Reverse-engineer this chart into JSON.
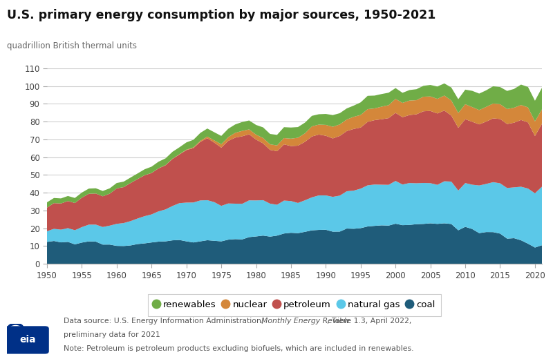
{
  "title": "U.S. primary energy consumption by major sources, 1950-2021",
  "ylabel": "quadrillion British thermal units",
  "ylim": [
    0,
    110
  ],
  "yticks": [
    0,
    10,
    20,
    30,
    40,
    50,
    60,
    70,
    80,
    90,
    100,
    110
  ],
  "years": [
    1950,
    1951,
    1952,
    1953,
    1954,
    1955,
    1956,
    1957,
    1958,
    1959,
    1960,
    1961,
    1962,
    1963,
    1964,
    1965,
    1966,
    1967,
    1968,
    1969,
    1970,
    1971,
    1972,
    1973,
    1974,
    1975,
    1976,
    1977,
    1978,
    1979,
    1980,
    1981,
    1982,
    1983,
    1984,
    1985,
    1986,
    1987,
    1988,
    1989,
    1990,
    1991,
    1992,
    1993,
    1994,
    1995,
    1996,
    1997,
    1998,
    1999,
    2000,
    2001,
    2002,
    2003,
    2004,
    2005,
    2006,
    2007,
    2008,
    2009,
    2010,
    2011,
    2012,
    2013,
    2014,
    2015,
    2016,
    2017,
    2018,
    2019,
    2020,
    2021
  ],
  "coal": [
    12.35,
    12.87,
    12.08,
    12.36,
    10.97,
    11.97,
    12.64,
    12.52,
    10.83,
    10.85,
    10.11,
    10.02,
    10.38,
    11.14,
    11.52,
    12.04,
    12.5,
    12.65,
    13.23,
    13.44,
    12.66,
    12.04,
    12.66,
    13.3,
    12.97,
    12.66,
    13.61,
    13.92,
    13.76,
    15.04,
    15.42,
    15.91,
    15.32,
    15.89,
    17.07,
    17.48,
    17.26,
    18.01,
    18.85,
    19.09,
    19.17,
    18.1,
    18.14,
    19.85,
    19.71,
    20.09,
    21.03,
    21.37,
    21.66,
    21.52,
    22.58,
    21.76,
    21.9,
    22.32,
    22.46,
    22.8,
    22.48,
    22.81,
    22.42,
    18.89,
    20.82,
    19.58,
    17.29,
    17.89,
    17.86,
    17.02,
    14.19,
    14.44,
    13.26,
    11.34,
    9.18,
    10.47
  ],
  "natural_gas": [
    5.97,
    6.86,
    7.16,
    7.73,
    7.96,
    8.69,
    9.42,
    9.55,
    9.89,
    10.64,
    12.39,
    12.93,
    13.67,
    14.37,
    15.29,
    15.77,
    17.03,
    17.95,
    19.31,
    20.7,
    21.79,
    22.47,
    23.0,
    22.51,
    21.73,
    19.95,
    20.35,
    19.93,
    20.0,
    20.67,
    20.24,
    19.91,
    18.53,
    17.35,
    18.51,
    17.84,
    16.99,
    17.73,
    18.55,
    19.4,
    19.3,
    19.58,
    20.23,
    20.97,
    21.47,
    22.21,
    23.13,
    23.24,
    22.85,
    22.91,
    24.05,
    22.85,
    23.56,
    23.0,
    23.03,
    22.57,
    21.95,
    23.62,
    23.84,
    22.34,
    24.61,
    24.93,
    26.79,
    27.05,
    28.08,
    28.27,
    28.46,
    28.58,
    30.11,
    31.01,
    30.5,
    32.91
  ],
  "petroleum": [
    13.32,
    14.43,
    14.7,
    15.25,
    15.28,
    16.55,
    17.33,
    17.48,
    17.27,
    17.97,
    19.92,
    20.2,
    21.42,
    22.16,
    22.99,
    23.25,
    24.13,
    24.83,
    26.45,
    27.36,
    29.52,
    30.56,
    32.95,
    34.84,
    33.45,
    32.73,
    35.17,
    37.12,
    37.97,
    37.12,
    34.2,
    31.93,
    30.23,
    30.12,
    31.59,
    30.92,
    32.2,
    32.86,
    34.22,
    34.21,
    33.55,
    32.85,
    33.55,
    33.84,
    34.67,
    34.35,
    35.67,
    36.2,
    36.8,
    37.5,
    38.26,
    37.86,
    38.22,
    38.77,
    40.29,
    40.6,
    40.12,
    39.78,
    37.13,
    35.27,
    35.89,
    35.37,
    34.34,
    35.05,
    35.87,
    36.15,
    35.97,
    36.35,
    37.54,
    37.16,
    32.2,
    35.37
  ],
  "nuclear": [
    0.0,
    0.0,
    0.0,
    0.0,
    0.0,
    0.0,
    0.0,
    0.0,
    0.0,
    0.0,
    0.01,
    0.02,
    0.02,
    0.03,
    0.04,
    0.04,
    0.06,
    0.09,
    0.14,
    0.15,
    0.24,
    0.41,
    0.58,
    0.91,
    1.27,
    1.9,
    2.11,
    2.7,
    3.02,
    2.78,
    2.74,
    3.01,
    3.13,
    3.2,
    3.55,
    4.15,
    4.47,
    4.75,
    5.66,
    5.6,
    6.1,
    6.55,
    6.48,
    6.52,
    6.84,
    7.08,
    7.17,
    6.6,
    7.07,
    7.28,
    7.86,
    8.03,
    8.14,
    7.96,
    8.22,
    8.16,
    8.21,
    8.41,
    8.46,
    8.35,
    8.43,
    8.26,
    8.05,
    8.27,
    8.33,
    8.34,
    8.43,
    8.42,
    8.42,
    8.46,
    8.25,
    8.1
  ],
  "renewables": [
    2.97,
    2.88,
    2.86,
    2.82,
    2.84,
    2.87,
    2.93,
    2.95,
    2.99,
    3.01,
    3.03,
    3.06,
    3.08,
    3.14,
    3.33,
    3.55,
    3.73,
    3.78,
    3.87,
    3.9,
    4.08,
    4.26,
    4.45,
    4.53,
    4.57,
    4.7,
    4.72,
    4.72,
    5.01,
    5.01,
    5.49,
    5.98,
    5.83,
    5.96,
    6.13,
    6.27,
    5.99,
    6.05,
    5.94,
    5.83,
    6.17,
    6.56,
    6.31,
    6.22,
    6.29,
    7.09,
    7.48,
    7.2,
    7.1,
    7.02,
    6.09,
    5.67,
    5.9,
    6.15,
    6.11,
    6.45,
    6.94,
    6.83,
    7.3,
    7.74,
    8.2,
    9.14,
    9.27,
    9.3,
    9.71,
    9.63,
    10.18,
    10.56,
    11.47,
    11.5,
    11.59,
    12.14
  ],
  "colors": {
    "coal": "#1f5c7a",
    "natural_gas": "#5bc8e8",
    "petroleum": "#c0504d",
    "nuclear": "#d4873a",
    "renewables": "#70ad47"
  },
  "legend_labels": [
    "renewables",
    "nuclear",
    "petroleum",
    "natural gas",
    "coal"
  ],
  "legend_colors": [
    "#70ad47",
    "#d4873a",
    "#c0504d",
    "#5bc8e8",
    "#1f5c7a"
  ],
  "footnote_line1a": "Data source: U.S. Energy Information Administration, ",
  "footnote_line1b": "Monthly Energy Review",
  "footnote_line1c": ", Table 1.3, April 2022,",
  "footnote_line2": "preliminary data for 2021",
  "footnote_line3": "Note: Petroleum is petroleum products excluding biofuels, which are included in renewables.",
  "bg_color": "#ffffff",
  "plot_bg_color": "#ffffff",
  "grid_color": "#d0d0d0"
}
